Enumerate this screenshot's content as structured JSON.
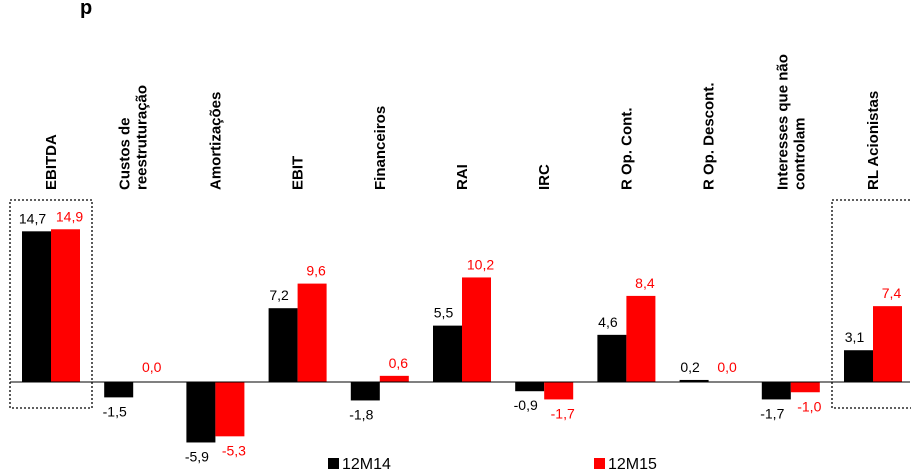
{
  "chart_data": {
    "type": "bar",
    "title": "p",
    "categories": [
      "EBITDA",
      "Custos de|reestruturação",
      "Amortizações",
      "EBIT",
      "Financeiros",
      "RAI",
      "IRC",
      "R Op. Cont.",
      "R Op. Descont.",
      "Interesses que não|controlam",
      "RL Acionistas"
    ],
    "series": [
      {
        "name": "12M14",
        "color": "#000000",
        "values": [
          14.7,
          -1.5,
          -5.9,
          7.2,
          -1.8,
          5.5,
          -0.9,
          4.6,
          0.2,
          -1.7,
          3.1
        ],
        "labels": [
          "14,7",
          "-1,5",
          "-5,9",
          "7,2",
          "-1,8",
          "5,5",
          "-0,9",
          "4,6",
          "0,2",
          "-1,7",
          "3,1"
        ]
      },
      {
        "name": "12M15",
        "color": "#ff0000",
        "values": [
          14.9,
          0.0,
          -5.3,
          9.6,
          0.6,
          10.2,
          -1.7,
          8.4,
          0.0,
          -1.0,
          7.4
        ],
        "labels": [
          "14,9",
          "0,0",
          "-5,3",
          "9,6",
          "0,6",
          "10,2",
          "-1,7",
          "8,4",
          "0,0",
          "-1,0",
          "7,4"
        ]
      }
    ],
    "highlighted_categories": [
      "EBITDA",
      "RL Acionistas"
    ],
    "grid": false,
    "legend_position": "bottom-center"
  }
}
